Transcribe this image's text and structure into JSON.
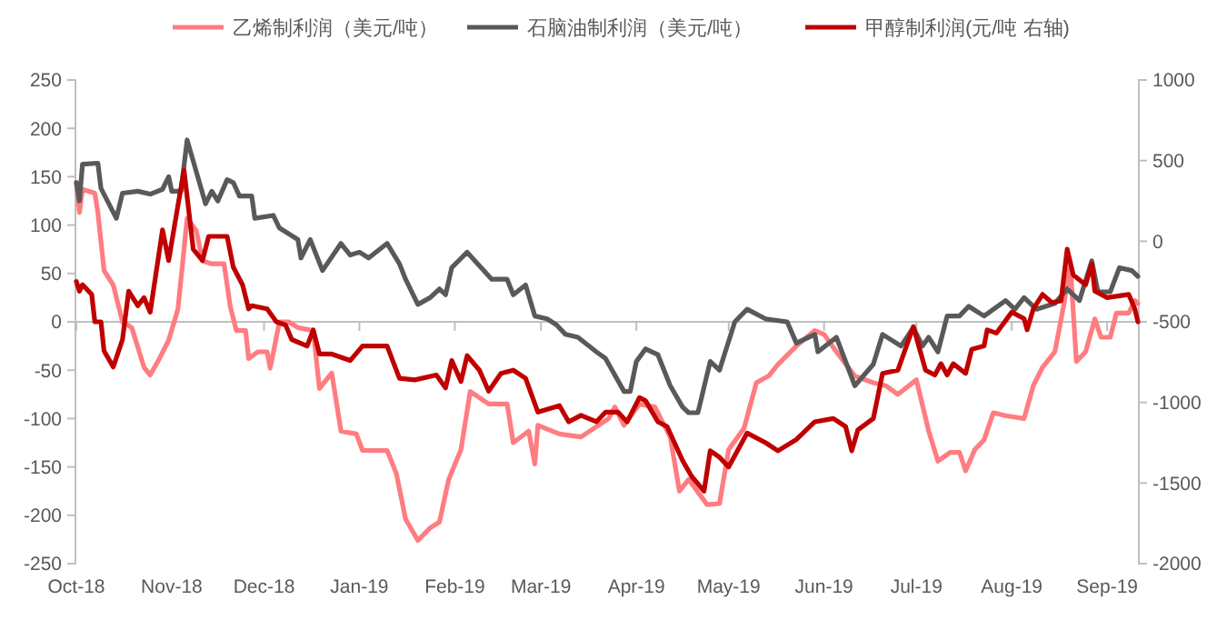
{
  "chart_data": {
    "type": "line",
    "legend": "top",
    "line_style": "solid",
    "xlim": [
      "2018-10-01",
      "2019-09-11"
    ],
    "xticks": [
      {
        "value": "2018-10-01",
        "label": "Oct-18"
      },
      {
        "value": "2018-11-01",
        "label": "Nov-18"
      },
      {
        "value": "2018-12-01",
        "label": "Dec-18"
      },
      {
        "value": "2019-01-01",
        "label": "Jan-19"
      },
      {
        "value": "2019-02-01",
        "label": "Feb-19"
      },
      {
        "value": "2019-03-01",
        "label": "Mar-19"
      },
      {
        "value": "2019-04-01",
        "label": "Apr-19"
      },
      {
        "value": "2019-05-01",
        "label": "May-19"
      },
      {
        "value": "2019-06-01",
        "label": "Jun-19"
      },
      {
        "value": "2019-07-01",
        "label": "Jul-19"
      },
      {
        "value": "2019-08-01",
        "label": "Aug-19"
      },
      {
        "value": "2019-09-01",
        "label": "Sep-19"
      }
    ],
    "ylim": [
      -250,
      250
    ],
    "yticks": [
      -250,
      -200,
      -150,
      -100,
      -50,
      0,
      50,
      100,
      150,
      200,
      250
    ],
    "y2lim": [
      -2000,
      1000
    ],
    "y2ticks": [
      -2000,
      -1500,
      -1000,
      -500,
      0,
      500,
      1000
    ],
    "series": [
      {
        "name": "乙烯制利润（美元/吨）",
        "color": "#ff7c80",
        "x": [
          "2018-10-01",
          "2018-10-02",
          "2018-10-03",
          "2018-10-07",
          "2018-10-08",
          "2018-10-10",
          "2018-10-13",
          "2018-10-16",
          "2018-10-19",
          "2018-10-23",
          "2018-10-25",
          "2018-10-28",
          "2018-10-31",
          "2018-11-03",
          "2018-11-04",
          "2018-11-06",
          "2018-11-09",
          "2018-11-11",
          "2018-11-14",
          "2018-11-18",
          "2018-11-20",
          "2018-11-22",
          "2018-11-25",
          "2018-11-26",
          "2018-11-29",
          "2018-12-02",
          "2018-12-03",
          "2018-12-06",
          "2018-12-09",
          "2018-12-12",
          "2018-12-17",
          "2018-12-19",
          "2018-12-23",
          "2018-12-26",
          "2018-12-31",
          "2019-01-02",
          "2019-01-10",
          "2019-01-13",
          "2019-01-16",
          "2019-01-20",
          "2019-01-24",
          "2019-01-27",
          "2019-01-30",
          "2019-02-03",
          "2019-02-06",
          "2019-02-12",
          "2019-02-18",
          "2019-02-20",
          "2019-02-25",
          "2019-02-27",
          "2019-02-28",
          "2019-03-07",
          "2019-03-14",
          "2019-03-23",
          "2019-03-25",
          "2019-03-28",
          "2019-04-02",
          "2019-04-07",
          "2019-04-12",
          "2019-04-15",
          "2019-04-18",
          "2019-04-24",
          "2019-04-28",
          "2019-05-01",
          "2019-05-06",
          "2019-05-10",
          "2019-05-14",
          "2019-05-17",
          "2019-05-23",
          "2019-05-29",
          "2019-06-01",
          "2019-06-05",
          "2019-06-11",
          "2019-06-17",
          "2019-06-21",
          "2019-06-25",
          "2019-07-01",
          "2019-07-05",
          "2019-07-08",
          "2019-07-12",
          "2019-07-15",
          "2019-07-17",
          "2019-07-20",
          "2019-07-23",
          "2019-07-26",
          "2019-07-30",
          "2019-08-05",
          "2019-08-08",
          "2019-08-11",
          "2019-08-15",
          "2019-08-18",
          "2019-08-20",
          "2019-08-22",
          "2019-08-25",
          "2019-08-28",
          "2019-08-30",
          "2019-09-02",
          "2019-09-04",
          "2019-09-08",
          "2019-09-10",
          "2019-09-11"
        ],
        "values": [
          144,
          113,
          137,
          133,
          113,
          53,
          38,
          0,
          -6,
          -47,
          -55,
          -38,
          -19,
          13,
          44,
          107,
          94,
          63,
          60,
          60,
          16,
          -9,
          -9,
          -38,
          -31,
          -31,
          -48,
          0,
          0,
          -6,
          -9,
          -69,
          -53,
          -113,
          -116,
          -133,
          -133,
          -157,
          -204,
          -226,
          -213,
          -207,
          -163,
          -132,
          -72,
          -85,
          -85,
          -125,
          -113,
          -147,
          -107,
          -116,
          -119,
          -100,
          -88,
          -107,
          -85,
          -88,
          -119,
          -175,
          -163,
          -189,
          -188,
          -132,
          -110,
          -63,
          -56,
          -44,
          -25,
          -9,
          -13,
          -31,
          -56,
          -63,
          -66,
          -75,
          -60,
          -113,
          -144,
          -135,
          -135,
          -154,
          -132,
          -122,
          -94,
          -97,
          -100,
          -66,
          -47,
          -31,
          19,
          60,
          -41,
          -31,
          3,
          -16,
          -16,
          9,
          9,
          22,
          19
        ]
      },
      {
        "name": "石脑油制利润（美元/吨）",
        "color": "#595959",
        "x": [
          "2018-10-01",
          "2018-10-02",
          "2018-10-03",
          "2018-10-08",
          "2018-10-09",
          "2018-10-14",
          "2018-10-16",
          "2018-10-21",
          "2018-10-25",
          "2018-10-29",
          "2018-10-31",
          "2018-11-01",
          "2018-11-04",
          "2018-11-06",
          "2018-11-08",
          "2018-11-12",
          "2018-11-14",
          "2018-11-16",
          "2018-11-19",
          "2018-11-21",
          "2018-11-23",
          "2018-11-27",
          "2018-11-28",
          "2018-12-04",
          "2018-12-06",
          "2018-12-08",
          "2018-12-12",
          "2018-12-13",
          "2018-12-16",
          "2018-12-20",
          "2018-12-26",
          "2018-12-29",
          "2019-01-01",
          "2019-01-04",
          "2019-01-10",
          "2019-01-14",
          "2019-01-16",
          "2019-01-20",
          "2019-01-24",
          "2019-01-27",
          "2019-01-29",
          "2019-01-31",
          "2019-02-05",
          "2019-02-13",
          "2019-02-18",
          "2019-02-20",
          "2019-02-24",
          "2019-02-27",
          "2019-03-03",
          "2019-03-06",
          "2019-03-09",
          "2019-03-13",
          "2019-03-19",
          "2019-03-22",
          "2019-03-28",
          "2019-03-30",
          "2019-04-01",
          "2019-04-04",
          "2019-04-08",
          "2019-04-12",
          "2019-04-16",
          "2019-04-18",
          "2019-04-21",
          "2019-04-25",
          "2019-04-28",
          "2019-05-03",
          "2019-05-07",
          "2019-05-13",
          "2019-05-20",
          "2019-05-23",
          "2019-05-29",
          "2019-05-30",
          "2019-06-05",
          "2019-06-11",
          "2019-06-17",
          "2019-06-20",
          "2019-06-26",
          "2019-06-30",
          "2019-07-03",
          "2019-07-05",
          "2019-07-08",
          "2019-07-11",
          "2019-07-15",
          "2019-07-18",
          "2019-07-23",
          "2019-07-30",
          "2019-08-02",
          "2019-08-05",
          "2019-08-09",
          "2019-08-15",
          "2019-08-19",
          "2019-08-23",
          "2019-08-27",
          "2019-08-29",
          "2019-09-02",
          "2019-09-05",
          "2019-09-09",
          "2019-09-11"
        ],
        "values": [
          144,
          125,
          163,
          164,
          138,
          107,
          133,
          135,
          132,
          137,
          150,
          135,
          135,
          188,
          166,
          122,
          135,
          125,
          147,
          144,
          130,
          130,
          107,
          110,
          97,
          93,
          85,
          66,
          85,
          53,
          81,
          69,
          72,
          66,
          81,
          60,
          44,
          18,
          25,
          34,
          28,
          56,
          72,
          44,
          44,
          28,
          38,
          6,
          3,
          -3,
          -13,
          -16,
          -31,
          -38,
          -72,
          -72,
          -41,
          -28,
          -34,
          -66,
          -88,
          -94,
          -94,
          -41,
          -50,
          0,
          13,
          3,
          0,
          -22,
          -13,
          -31,
          -16,
          -66,
          -44,
          -13,
          -25,
          -6,
          -25,
          -16,
          -31,
          6,
          6,
          16,
          6,
          22,
          13,
          25,
          13,
          19,
          34,
          22,
          63,
          31,
          31,
          56,
          53,
          47
        ]
      },
      {
        "name": "甲醇制利润(元/吨 右轴)",
        "color": "#c00000",
        "axis": "y2",
        "x": [
          "2018-10-01",
          "2018-10-02",
          "2018-10-03",
          "2018-10-06",
          "2018-10-07",
          "2018-10-09",
          "2018-10-10",
          "2018-10-13",
          "2018-10-16",
          "2018-10-18",
          "2018-10-21",
          "2018-10-23",
          "2018-10-25",
          "2018-10-29",
          "2018-10-31",
          "2018-11-03",
          "2018-11-05",
          "2018-11-08",
          "2018-11-11",
          "2018-11-13",
          "2018-11-19",
          "2018-11-21",
          "2018-11-24",
          "2018-11-26",
          "2018-11-27",
          "2018-12-02",
          "2018-12-05",
          "2018-12-08",
          "2018-12-10",
          "2018-12-15",
          "2018-12-17",
          "2018-12-19",
          "2018-12-23",
          "2018-12-29",
          "2019-01-02",
          "2019-01-10",
          "2019-01-14",
          "2019-01-19",
          "2019-01-26",
          "2019-01-29",
          "2019-01-31",
          "2019-02-03",
          "2019-02-05",
          "2019-02-09",
          "2019-02-12",
          "2019-02-16",
          "2019-02-20",
          "2019-02-24",
          "2019-02-28",
          "2019-03-07",
          "2019-03-10",
          "2019-03-14",
          "2019-03-19",
          "2019-03-22",
          "2019-03-26",
          "2019-03-29",
          "2019-04-02",
          "2019-04-04",
          "2019-04-08",
          "2019-04-11",
          "2019-04-16",
          "2019-04-19",
          "2019-04-23",
          "2019-04-25",
          "2019-04-28",
          "2019-05-01",
          "2019-05-07",
          "2019-05-13",
          "2019-05-17",
          "2019-05-23",
          "2019-05-29",
          "2019-06-04",
          "2019-06-08",
          "2019-06-10",
          "2019-06-12",
          "2019-06-17",
          "2019-06-20",
          "2019-06-25",
          "2019-06-30",
          "2019-07-04",
          "2019-07-07",
          "2019-07-09",
          "2019-07-11",
          "2019-07-13",
          "2019-07-17",
          "2019-07-19",
          "2019-07-23",
          "2019-07-24",
          "2019-07-27",
          "2019-08-01",
          "2019-08-05",
          "2019-08-06",
          "2019-08-08",
          "2019-08-11",
          "2019-08-14",
          "2019-08-17",
          "2019-08-19",
          "2019-08-21",
          "2019-08-25",
          "2019-08-27",
          "2019-08-28",
          "2019-09-01",
          "2019-09-08",
          "2019-09-10",
          "2019-09-11"
        ],
        "values": [
          -250,
          -310,
          -270,
          -330,
          -500,
          -500,
          -680,
          -780,
          -610,
          -310,
          -400,
          -350,
          -440,
          70,
          -120,
          220,
          440,
          -50,
          -120,
          30,
          30,
          -160,
          -270,
          -420,
          -400,
          -420,
          -500,
          -520,
          -610,
          -650,
          -550,
          -700,
          -700,
          -740,
          -650,
          -650,
          -850,
          -860,
          -830,
          -910,
          -740,
          -870,
          -710,
          -800,
          -930,
          -820,
          -800,
          -850,
          -1060,
          -1020,
          -1120,
          -1080,
          -1120,
          -1060,
          -1060,
          -1120,
          -970,
          -990,
          -1120,
          -1150,
          -1360,
          -1460,
          -1550,
          -1300,
          -1340,
          -1400,
          -1190,
          -1250,
          -1300,
          -1230,
          -1120,
          -1100,
          -1150,
          -1300,
          -1170,
          -1100,
          -820,
          -800,
          -530,
          -800,
          -830,
          -760,
          -830,
          -760,
          -820,
          -670,
          -650,
          -550,
          -570,
          -440,
          -480,
          -550,
          -420,
          -330,
          -380,
          -370,
          -50,
          -210,
          -270,
          -140,
          -310,
          -350,
          -330,
          -420,
          -500
        ]
      }
    ]
  }
}
